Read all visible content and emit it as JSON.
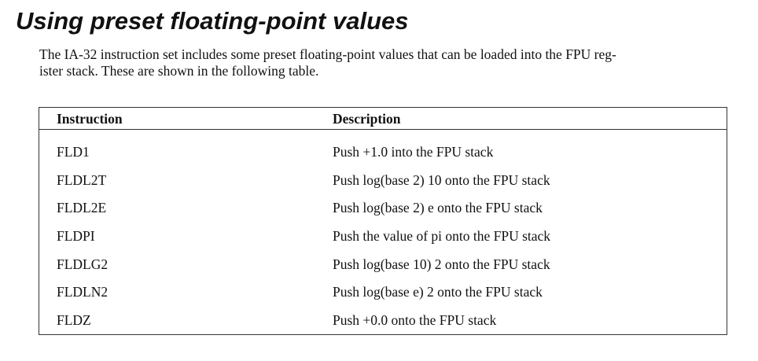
{
  "heading": "Using preset floating-point values",
  "intro": {
    "line1": "The IA-32 instruction set includes some preset floating-point values that can be loaded into the FPU reg-",
    "line2": "ister stack. These are shown in the following table."
  },
  "table": {
    "headers": [
      "Instruction",
      "Description"
    ],
    "rows": [
      [
        "FLD1",
        "Push +1.0 into the FPU stack"
      ],
      [
        "FLDL2T",
        "Push log(base 2) 10 onto the FPU stack"
      ],
      [
        "FLDL2E",
        "Push log(base 2) e onto the FPU stack"
      ],
      [
        "FLDPI",
        "Push the value of pi onto the FPU stack"
      ],
      [
        "FLDLG2",
        "Push log(base 10) 2 onto the FPU stack"
      ],
      [
        "FLDLN2",
        "Push log(base e) 2 onto the FPU stack"
      ],
      [
        "FLDZ",
        "Push +0.0 onto the FPU stack"
      ]
    ]
  }
}
